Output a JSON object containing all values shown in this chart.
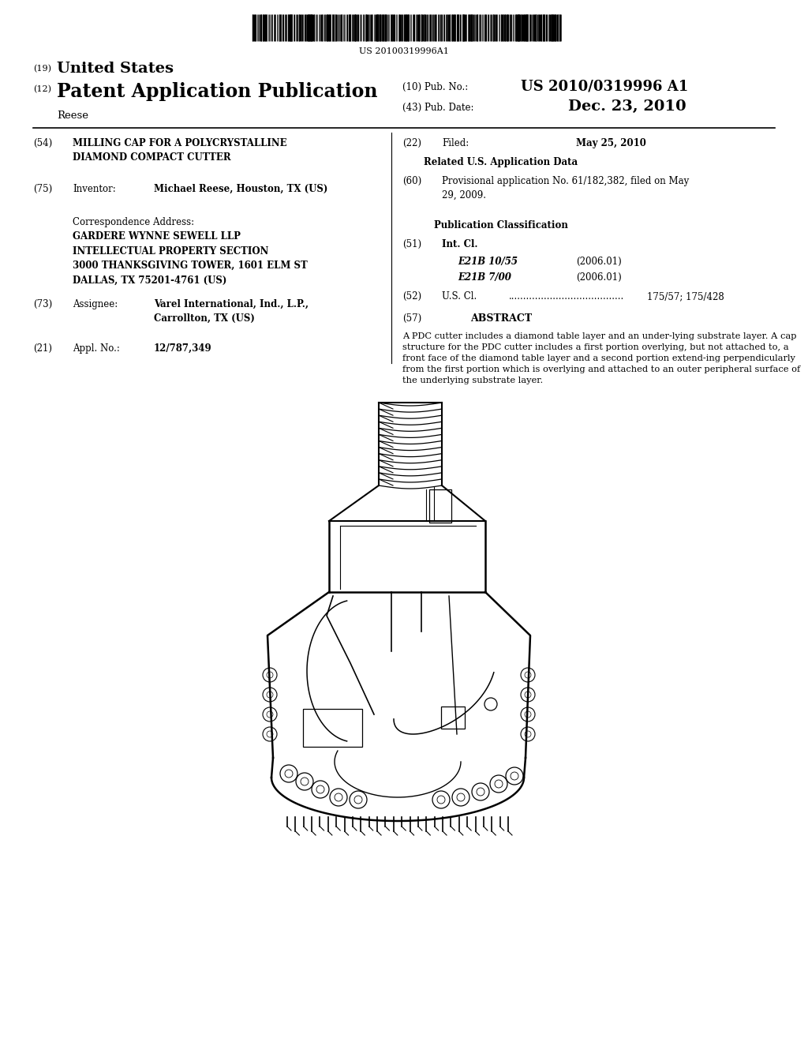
{
  "background_color": "#ffffff",
  "barcode_text": "US 20100319996A1",
  "header": {
    "country_label": "(19)",
    "country": "United States",
    "type_label": "(12)",
    "type": "Patent Application Publication",
    "inventor_last": "Reese",
    "pub_no_label": "(10) Pub. No.:",
    "pub_no": "US 2010/0319996 A1",
    "pub_date_label": "(43) Pub. Date:",
    "pub_date": "Dec. 23, 2010"
  },
  "left_col": {
    "title_num": "(54)",
    "title": "MILLING CAP FOR A POLYCRYSTALLINE\nDIAMOND COMPACT CUTTER",
    "inventor_num": "(75)",
    "inventor_label": "Inventor:",
    "inventor": "Michael Reese, Houston, TX (US)",
    "correspondence_label": "Correspondence Address:",
    "correspondence": "GARDERE WYNNE SEWELL LLP\nINTELLECTUAL PROPERTY SECTION\n3000 THANKSGIVING TOWER, 1601 ELM ST\nDALLAS, TX 75201-4761 (US)",
    "assignee_num": "(73)",
    "assignee_label": "Assignee:",
    "assignee": "Varel International, Ind., L.P.,\nCarrollton, TX (US)",
    "appl_num": "(21)",
    "appl_label": "Appl. No.:",
    "appl": "12/787,349"
  },
  "right_col": {
    "filed_num": "(22)",
    "filed_label": "Filed:",
    "filed": "May 25, 2010",
    "related_header": "Related U.S. Application Data",
    "provisional_num": "(60)",
    "provisional": "Provisional application No. 61/182,382, filed on May\n29, 2009.",
    "pub_class_header": "Publication Classification",
    "intl_cl_num": "(51)",
    "intl_cl_label": "Int. Cl.",
    "intl_cl_1": "E21B 10/55",
    "intl_cl_1_date": "(2006.01)",
    "intl_cl_2": "E21B 7/00",
    "intl_cl_2_date": "(2006.01)",
    "us_cl_num": "(52)",
    "us_cl_label": "U.S. Cl.",
    "us_cl_dots": ".......................................",
    "us_cl": "175/57; 175/428",
    "abstract_num": "(57)",
    "abstract_label": "ABSTRACT",
    "abstract": "A PDC cutter includes a diamond table layer and an under-lying substrate layer. A cap structure for the PDC cutter includes a first portion overlying, but not attached to, a front face of the diamond table layer and a second portion extend-ing perpendicularly from the first portion which is overlying and attached to an outer peripheral surface of the underlying substrate layer."
  }
}
